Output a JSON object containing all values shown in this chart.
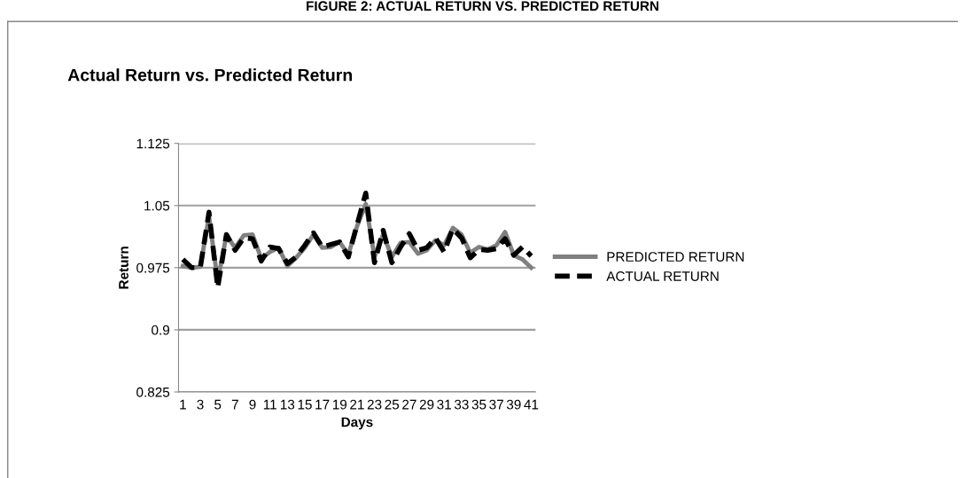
{
  "chart_data": {
    "type": "line",
    "title": "Actual Return vs. Predicted Return",
    "xlabel": "Days",
    "ylabel": "Return",
    "annotations": [
      "FIGURE 2: ACTUAL RETURN VS. PREDICTED RETURN"
    ],
    "categories": [
      "1",
      null,
      "3",
      null,
      "5",
      null,
      "7",
      null,
      "9",
      null,
      "11",
      null,
      "13",
      null,
      "15",
      null,
      "17",
      null,
      "19",
      null,
      "21",
      null,
      "23",
      null,
      "25",
      null,
      "27",
      null,
      "29",
      null,
      "31",
      null,
      "33",
      null,
      "35",
      null,
      "37",
      null,
      "39",
      null,
      "41"
    ],
    "series": [
      {
        "name": "PREDICTED RETURN",
        "color": "#808080",
        "line_style": "solid",
        "values": [
          0.977,
          0.975,
          0.976,
          1.037,
          0.959,
          1.014,
          0.999,
          1.014,
          1.015,
          0.986,
          0.994,
          0.999,
          0.977,
          0.987,
          0.999,
          1.015,
          0.999,
          1.0,
          1.006,
          0.991,
          1.025,
          1.052,
          0.988,
          1.015,
          0.988,
          1.005,
          1.006,
          0.992,
          0.996,
          1.008,
          1.002,
          1.023,
          1.015,
          0.993,
          1.0,
          0.997,
          1.002,
          1.018,
          0.99,
          0.985,
          0.975
        ]
      },
      {
        "name": "ACTUAL RETURN",
        "color": "#000000",
        "line_style": "dashed",
        "values": [
          0.985,
          0.975,
          0.975,
          1.042,
          0.951,
          1.015,
          0.996,
          1.011,
          1.01,
          0.983,
          1.0,
          0.998,
          0.98,
          0.988,
          1.002,
          1.017,
          1.0,
          1.003,
          1.006,
          0.988,
          1.027,
          1.065,
          0.981,
          1.02,
          0.981,
          1.0,
          1.016,
          0.996,
          0.999,
          1.011,
          0.994,
          1.022,
          1.011,
          0.987,
          0.997,
          0.996,
          0.998,
          1.01,
          0.99,
          1.0,
          0.989
        ]
      }
    ],
    "ylim": [
      0.825,
      1.125
    ],
    "yticks": [
      0.825,
      0.9,
      0.975,
      1.05,
      1.125
    ],
    "grid": "y",
    "legend": "right",
    "marker": "none"
  }
}
